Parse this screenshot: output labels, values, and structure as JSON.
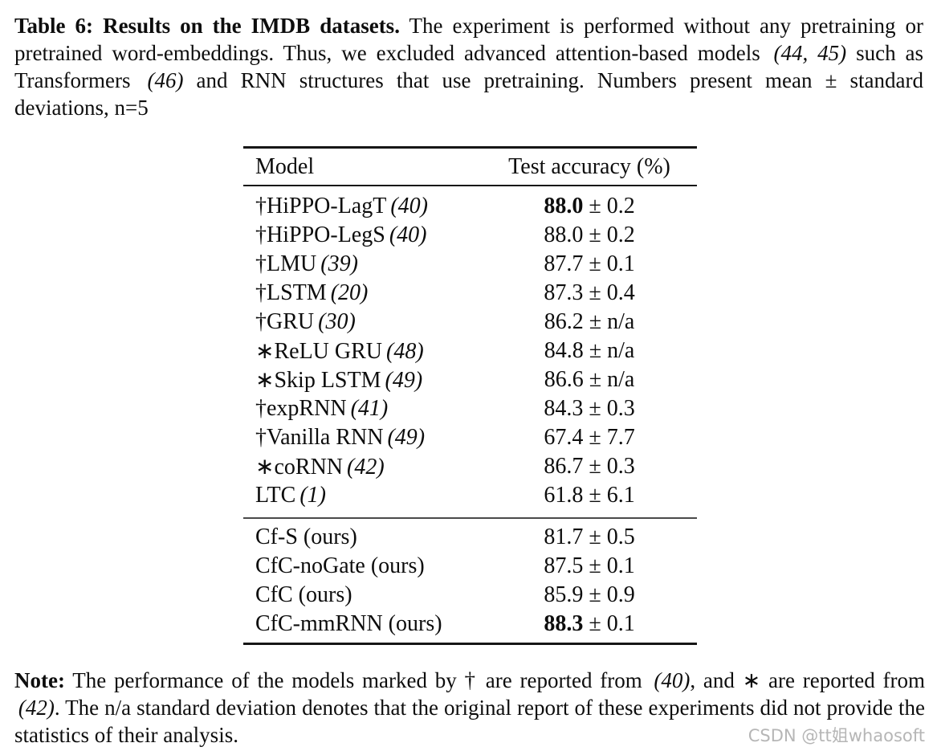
{
  "caption": {
    "label": "Table 6: ",
    "title": "Results on the IMDB datasets.",
    "body1": " The experiment is performed without any pretraining or pretrained word-embeddings. Thus, we excluded advanced attention-based models ",
    "ref1": "(44, 45)",
    "body2": " such as Transformers ",
    "ref2": "(46)",
    "body3": " and RNN structures that use pretraining. Numbers present mean ± standard deviations, n=5"
  },
  "table": {
    "header": {
      "model": "Model",
      "accuracy": "Test accuracy (%)"
    },
    "pm": " ± ",
    "section1": [
      {
        "marker": "†",
        "name": "HiPPO-LagT",
        "ref": "(40)",
        "value": "88.0",
        "sd": "0.2"
      },
      {
        "marker": "†",
        "name": "HiPPO-LegS",
        "ref": "(40)",
        "value": "88.0",
        "sd": "0.2"
      },
      {
        "marker": "†",
        "name": "LMU",
        "ref": "(39)",
        "value": "87.7",
        "sd": "0.1"
      },
      {
        "marker": "†",
        "name": "LSTM",
        "ref": "(20)",
        "value": "87.3",
        "sd": "0.4"
      },
      {
        "marker": "†",
        "name": "GRU",
        "ref": "(30)",
        "value": "86.2",
        "sd": "n/a"
      },
      {
        "marker": "∗",
        "name": "ReLU GRU",
        "ref": "(48)",
        "value": "84.8",
        "sd": "n/a"
      },
      {
        "marker": "∗",
        "name": "Skip LSTM",
        "ref": "(49)",
        "value": "86.6",
        "sd": "n/a"
      },
      {
        "marker": "†",
        "name": "expRNN",
        "ref": "(41)",
        "value": "84.3",
        "sd": "0.3"
      },
      {
        "marker": "†",
        "name": "Vanilla RNN",
        "ref": "(49)",
        "value": "67.4",
        "sd": "7.7"
      },
      {
        "marker": "∗",
        "name": "coRNN",
        "ref": "(42)",
        "value": "86.7",
        "sd": "0.3"
      },
      {
        "marker": "",
        "name": "LTC",
        "ref": "(1)",
        "value": "61.8",
        "sd": "6.1"
      }
    ],
    "section2": [
      {
        "marker": "",
        "name": "Cf-S (ours)",
        "ref": "",
        "value": "81.7",
        "sd": "0.5"
      },
      {
        "marker": "",
        "name": "CfC-noGate (ours)",
        "ref": "",
        "value": "87.5",
        "sd": "0.1"
      },
      {
        "marker": "",
        "name": "CfC (ours)",
        "ref": "",
        "value": "85.9",
        "sd": "0.9"
      },
      {
        "marker": "",
        "name": "CfC-mmRNN (ours)",
        "ref": "",
        "value": "88.3",
        "sd": "0.1"
      }
    ]
  },
  "note": {
    "label": "Note:",
    "part1": " The performance of the models marked by † are reported from ",
    "ref1": "(40)",
    "part2": ", and ∗ are reported from ",
    "ref2": "(42)",
    "part3": ". The n/a standard deviation denotes that the original report of these experiments did not provide the statistics of their analysis."
  },
  "watermark": {
    "text": "CSDN @tt姐whaosoft",
    "color": "#b6b6b6"
  },
  "colors": {
    "background": "#ffffff",
    "text": "#0d0d0d",
    "rule_heavy": "#161616",
    "rule_light": "#4a4a4a"
  }
}
